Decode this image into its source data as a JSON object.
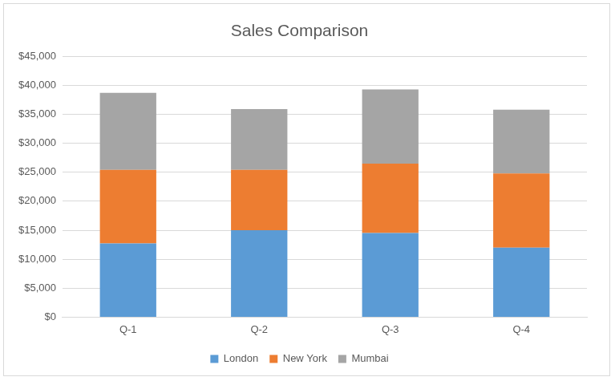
{
  "chart_data": {
    "type": "bar",
    "title": "Sales Comparison",
    "categories": [
      "Q-1",
      "Q-2",
      "Q-3",
      "Q-4"
    ],
    "series": [
      {
        "name": "London",
        "color": "#5b9bd5",
        "values": [
          12700,
          15000,
          14500,
          12000
        ]
      },
      {
        "name": "New York",
        "color": "#ed7d31",
        "values": [
          12700,
          10400,
          12000,
          12800
        ]
      },
      {
        "name": "Mumbai",
        "color": "#a5a5a5",
        "values": [
          13300,
          10500,
          12800,
          11000
        ]
      }
    ],
    "stacked": true,
    "ylim": [
      0,
      45000
    ],
    "yticks": [
      {
        "value": 0,
        "label": "$0"
      },
      {
        "value": 5000,
        "label": "$5,000"
      },
      {
        "value": 10000,
        "label": "$10,000"
      },
      {
        "value": 15000,
        "label": "$15,000"
      },
      {
        "value": 20000,
        "label": "$20,000"
      },
      {
        "value": 25000,
        "label": "$25,000"
      },
      {
        "value": 30000,
        "label": "$30,000"
      },
      {
        "value": 35000,
        "label": "$35,000"
      },
      {
        "value": 40000,
        "label": "$40,000"
      },
      {
        "value": 45000,
        "label": "$45,000"
      }
    ],
    "grid": true,
    "legend": "bottom"
  }
}
